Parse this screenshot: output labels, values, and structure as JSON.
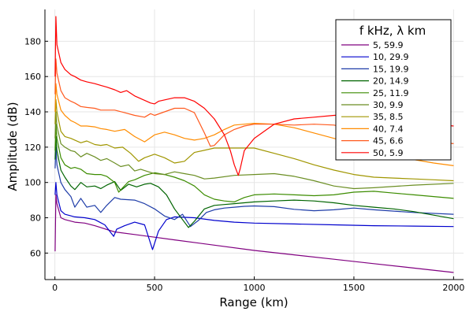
{
  "chart_data": {
    "type": "line",
    "title": "",
    "xlabel": "Range (km)",
    "ylabel": "Amplitude (dB)",
    "xlim": [
      -50,
      2050
    ],
    "ylim": [
      45,
      198
    ],
    "grid": true,
    "xticks": [
      0,
      500,
      1000,
      1500,
      2000
    ],
    "xtick_labels": [
      "0",
      "500",
      "1000",
      "1500",
      "2000"
    ],
    "yticks": [
      60,
      80,
      100,
      120,
      140,
      160,
      180
    ],
    "ytick_labels": [
      "60",
      "80",
      "100",
      "120",
      "140",
      "160",
      "180"
    ],
    "legend": {
      "title": "f kHz, λ km",
      "placement": "top-right"
    },
    "series": [
      {
        "name": "5,  59.9",
        "color": "#800080",
        "x": [
          1,
          5,
          10,
          30,
          50,
          100,
          150,
          200,
          300,
          400,
          500,
          600,
          800,
          1000,
          1200,
          1400,
          1600,
          1800,
          2000
        ],
        "y": [
          61,
          93,
          88,
          80,
          79,
          77.5,
          77,
          75.5,
          72,
          70.5,
          69,
          67.5,
          64.5,
          61.5,
          59,
          56.5,
          54,
          51.5,
          49
        ]
      },
      {
        "name": "10,  29.9",
        "color": "#0000cd",
        "x": [
          1,
          5,
          10,
          30,
          50,
          100,
          150,
          200,
          250,
          295,
          310,
          350,
          400,
          450,
          490,
          520,
          560,
          600,
          700,
          800,
          900,
          1000,
          1200,
          1400,
          1600,
          1800,
          2000
        ],
        "y": [
          93,
          100,
          93,
          84,
          82,
          80.5,
          80,
          79,
          76,
          69.5,
          73.5,
          75.5,
          77.5,
          76,
          62,
          72.5,
          79,
          80.5,
          80,
          78.5,
          77.5,
          77,
          76.5,
          76,
          75.5,
          75.3,
          75
        ]
      },
      {
        "name": "15,  19.9",
        "color": "#1e3ca8",
        "x": [
          1,
          5,
          10,
          30,
          50,
          80,
          100,
          130,
          160,
          200,
          230,
          260,
          300,
          330,
          400,
          450,
          500,
          550,
          600,
          640,
          680,
          720,
          760,
          800,
          850,
          900,
          950,
          1000,
          1100,
          1200,
          1300,
          1400,
          1500,
          1600,
          1800,
          2000
        ],
        "y": [
          108,
          120,
          110,
          100,
          96,
          92,
          86,
          91,
          86,
          87,
          83,
          87,
          91.5,
          90.5,
          90,
          88,
          85,
          81,
          79,
          82,
          75,
          78.5,
          83,
          84.5,
          85.5,
          86,
          86.5,
          86.7,
          86.3,
          84.8,
          84,
          84.5,
          85.5,
          84.5,
          83,
          82
        ]
      },
      {
        "name": "20,  14.9",
        "color": "#006400",
        "x": [
          1,
          5,
          10,
          30,
          50,
          80,
          100,
          130,
          160,
          200,
          230,
          260,
          300,
          330,
          370,
          410,
          450,
          480,
          520,
          560,
          600,
          640,
          670,
          700,
          750,
          800,
          850,
          900,
          950,
          1000,
          1100,
          1200,
          1300,
          1400,
          1500,
          1600,
          1700,
          1800,
          1900,
          2000
        ],
        "y": [
          113,
          126,
          118,
          107,
          103,
          98,
          96,
          100,
          97.5,
          98,
          96.5,
          98.5,
          100.5,
          95.5,
          99,
          97.5,
          99,
          99.5,
          97.5,
          93,
          85,
          79,
          74.5,
          78,
          85,
          87,
          87.5,
          88,
          88.5,
          89,
          89.5,
          90,
          89.5,
          88.5,
          87,
          86,
          85,
          83.5,
          81.5,
          79.5
        ]
      },
      {
        "name": "25,  11.9",
        "color": "#3c8c00",
        "x": [
          1,
          5,
          10,
          30,
          50,
          80,
          100,
          130,
          160,
          200,
          230,
          260,
          300,
          320,
          340,
          370,
          400,
          450,
          500,
          550,
          600,
          650,
          700,
          750,
          800,
          850,
          900,
          950,
          1000,
          1100,
          1200,
          1300,
          1400,
          1500,
          1600,
          1700,
          1800,
          1900,
          2000
        ],
        "y": [
          118,
          133,
          125,
          114,
          110,
          108,
          108.5,
          107.5,
          105,
          104.5,
          104.5,
          103.5,
          100,
          94.5,
          97,
          100.5,
          101.5,
          104,
          105.5,
          104.5,
          103,
          101,
          98,
          93,
          90.5,
          89.5,
          89,
          91.5,
          93,
          93.5,
          93,
          92.5,
          93,
          94.5,
          95,
          94,
          93,
          92,
          91
        ]
      },
      {
        "name": "30,  9.9",
        "color": "#6b8e23",
        "x": [
          1,
          5,
          10,
          30,
          50,
          80,
          100,
          130,
          160,
          200,
          230,
          260,
          300,
          330,
          370,
          400,
          430,
          470,
          500,
          550,
          600,
          650,
          700,
          750,
          800,
          900,
          1000,
          1100,
          1200,
          1300,
          1400,
          1500,
          1600,
          1800,
          2000
        ],
        "y": [
          125,
          140,
          132,
          122,
          120,
          118,
          117.5,
          114.5,
          116.5,
          114.5,
          112.5,
          113.5,
          111,
          109,
          110,
          106.5,
          107.5,
          106,
          105,
          104.5,
          106,
          105,
          104,
          102,
          102.5,
          104,
          104.5,
          105,
          103.5,
          101,
          98,
          96.5,
          97,
          98.5,
          99.5
        ]
      },
      {
        "name": "35,  8.5",
        "color": "#a09600",
        "x": [
          1,
          5,
          10,
          30,
          50,
          80,
          100,
          130,
          160,
          200,
          230,
          260,
          300,
          340,
          380,
          420,
          450,
          500,
          550,
          600,
          650,
          700,
          800,
          900,
          1000,
          1100,
          1200,
          1300,
          1400,
          1500,
          1600,
          1700,
          1800,
          1900,
          2000
        ],
        "y": [
          133,
          147,
          140,
          129,
          126,
          125,
          124,
          122.5,
          123.5,
          121.5,
          121,
          121.5,
          119.5,
          120,
          116.5,
          112,
          114,
          116,
          114,
          111,
          112,
          117,
          119.5,
          119.5,
          119.5,
          116.5,
          113.5,
          110,
          107,
          104.5,
          103,
          102.5,
          102,
          101.5,
          101
        ]
      },
      {
        "name": "40,  7.4",
        "color": "#ff8c00",
        "x": [
          1,
          5,
          10,
          30,
          50,
          80,
          100,
          130,
          160,
          200,
          230,
          260,
          300,
          350,
          400,
          450,
          500,
          550,
          600,
          650,
          700,
          750,
          800,
          850,
          900,
          950,
          1000,
          1100,
          1200,
          1300,
          1400,
          1500,
          1600,
          1700,
          1800,
          1900,
          2000
        ],
        "y": [
          140,
          156,
          150,
          141,
          138,
          135,
          134,
          132,
          132,
          131.5,
          130.5,
          130,
          129,
          130,
          126,
          123,
          127,
          128.5,
          127,
          125,
          124,
          125,
          127,
          130,
          132.5,
          133,
          133.5,
          133,
          131,
          128,
          125,
          122,
          119,
          116,
          113,
          111,
          109.5
        ]
      },
      {
        "name": "45,  6.6",
        "color": "#ff5a1e",
        "x": [
          1,
          5,
          10,
          30,
          50,
          80,
          100,
          130,
          160,
          200,
          230,
          260,
          300,
          350,
          400,
          450,
          480,
          500,
          550,
          600,
          650,
          700,
          750,
          780,
          800,
          850,
          900,
          950,
          1000,
          1100,
          1200,
          1300,
          1400,
          1500,
          1600,
          1700,
          1800,
          1900,
          2000
        ],
        "y": [
          150,
          170,
          162,
          152,
          148,
          146,
          145,
          143,
          142.5,
          142,
          141,
          141,
          141,
          139.5,
          138,
          137,
          139,
          138,
          140,
          142,
          142,
          139.5,
          128,
          120.5,
          121,
          127,
          130,
          132,
          133,
          133,
          132.5,
          133,
          132.5,
          130,
          128,
          126,
          124.5,
          123,
          122
        ]
      },
      {
        "name": "50,  5.9",
        "color": "#ff0000",
        "x": [
          1,
          5,
          10,
          30,
          50,
          80,
          100,
          130,
          160,
          200,
          230,
          260,
          300,
          330,
          360,
          400,
          440,
          480,
          500,
          520,
          560,
          600,
          650,
          700,
          750,
          800,
          850,
          880,
          900,
          920,
          930,
          950,
          1000,
          1050,
          1100,
          1200,
          1300,
          1400,
          1500,
          1600,
          1700,
          1800,
          1900,
          2000
        ],
        "y": [
          160,
          194,
          178,
          168,
          164,
          161,
          160,
          158,
          157,
          156,
          155,
          154,
          152.5,
          151,
          152,
          149,
          147,
          145,
          144.5,
          146,
          147,
          148,
          148,
          146,
          142,
          136,
          127,
          118,
          110,
          104,
          108,
          118,
          125,
          129,
          133,
          136,
          137,
          138,
          138.5,
          138,
          136,
          134,
          133,
          132
        ]
      }
    ]
  }
}
